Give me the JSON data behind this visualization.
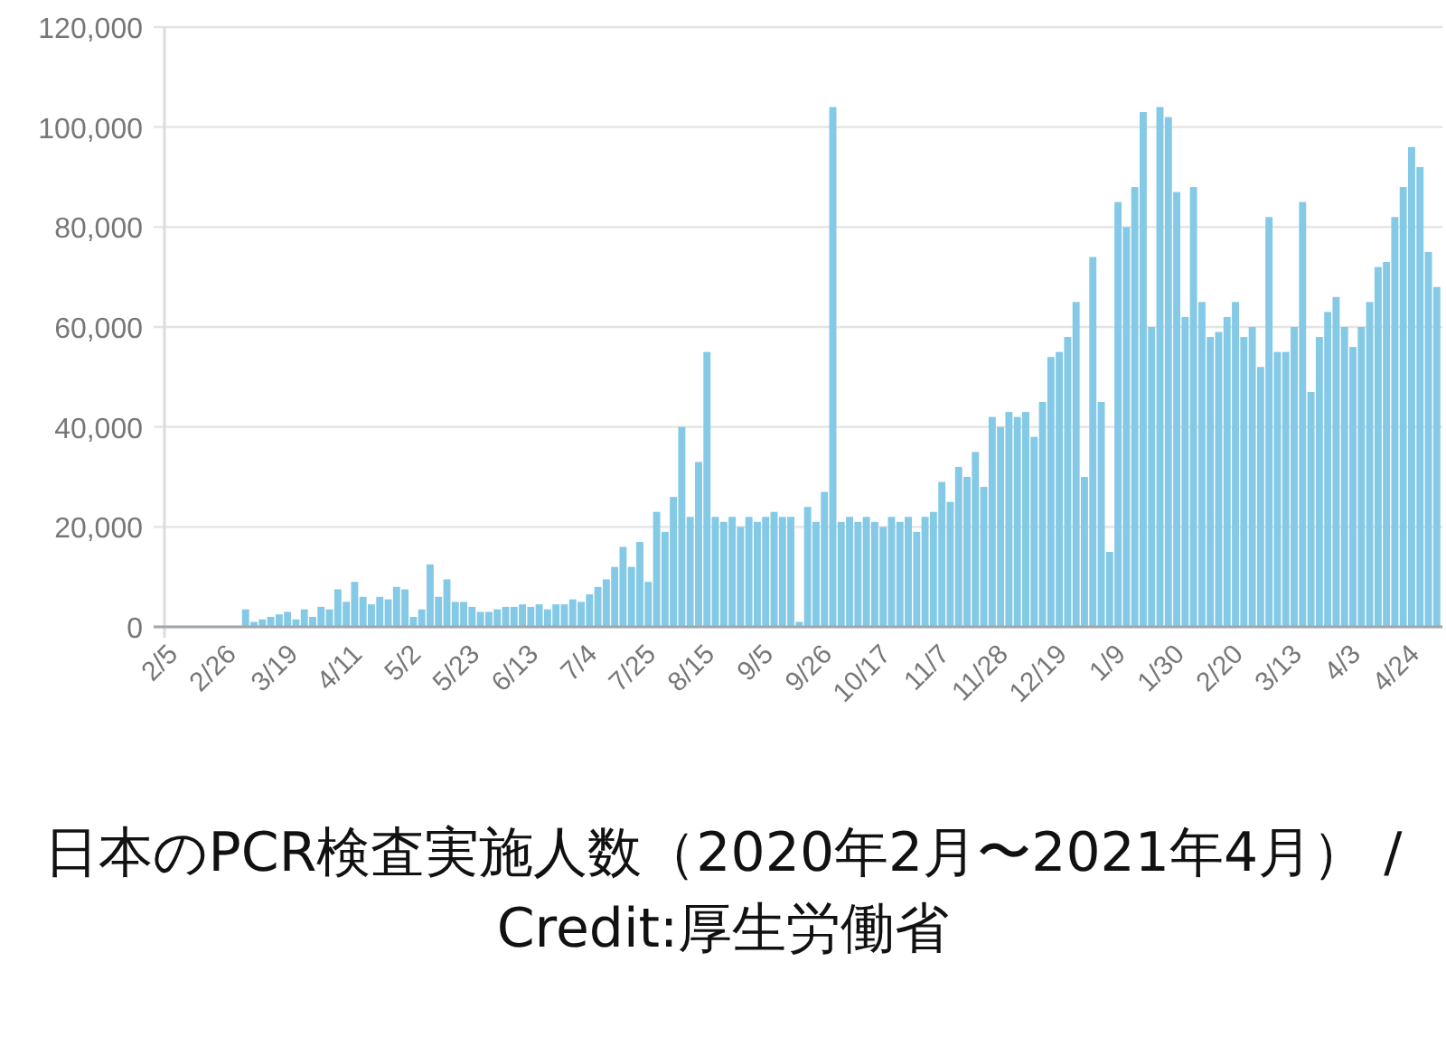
{
  "chart_data": {
    "type": "bar",
    "title": "日本のPCR検査実施人数（2020年2月〜2021年4月） / Credit:厚生労働省",
    "color": "#84c9e6",
    "grid": "y",
    "xlim": [
      "2020-02-03",
      "2021-05-05"
    ],
    "ylim": [
      0,
      120000
    ],
    "yticks": [
      {
        "value": 0,
        "label": "0"
      },
      {
        "value": 20000,
        "label": "20,000"
      },
      {
        "value": 40000,
        "label": "40,000"
      },
      {
        "value": 60000,
        "label": "60,000"
      },
      {
        "value": 80000,
        "label": "80,000"
      },
      {
        "value": 100000,
        "label": "100,000"
      },
      {
        "value": 120000,
        "label": "120,000"
      }
    ],
    "xticks": [
      {
        "value": "2020-02-05",
        "label": "2/5"
      },
      {
        "value": "2020-02-26",
        "label": "2/26"
      },
      {
        "value": "2020-03-19",
        "label": "3/19"
      },
      {
        "value": "2020-04-11",
        "label": "4/11"
      },
      {
        "value": "2020-05-02",
        "label": "5/2"
      },
      {
        "value": "2020-05-23",
        "label": "5/23"
      },
      {
        "value": "2020-06-13",
        "label": "6/13"
      },
      {
        "value": "2020-07-04",
        "label": "7/4"
      },
      {
        "value": "2020-07-25",
        "label": "7/25"
      },
      {
        "value": "2020-08-15",
        "label": "8/15"
      },
      {
        "value": "2020-09-05",
        "label": "9/5"
      },
      {
        "value": "2020-09-26",
        "label": "9/26"
      },
      {
        "value": "2020-10-17",
        "label": "10/17"
      },
      {
        "value": "2020-11-07",
        "label": "11/7"
      },
      {
        "value": "2020-11-28",
        "label": "11/28"
      },
      {
        "value": "2020-12-19",
        "label": "12/19"
      },
      {
        "value": "2021-01-09",
        "label": "1/9"
      },
      {
        "value": "2021-01-30",
        "label": "1/30"
      },
      {
        "value": "2021-02-20",
        "label": "2/20"
      },
      {
        "value": "2021-03-13",
        "label": "3/13"
      },
      {
        "value": "2021-04-03",
        "label": "4/3"
      },
      {
        "value": "2021-04-24",
        "label": "4/24"
      }
    ],
    "x": [
      "2020-02-05",
      "2020-02-08",
      "2020-02-11",
      "2020-02-14",
      "2020-02-17",
      "2020-02-20",
      "2020-02-23",
      "2020-02-26",
      "2020-02-29",
      "2020-03-03",
      "2020-03-06",
      "2020-03-09",
      "2020-03-12",
      "2020-03-15",
      "2020-03-18",
      "2020-03-21",
      "2020-03-24",
      "2020-03-27",
      "2020-03-30",
      "2020-04-02",
      "2020-04-05",
      "2020-04-08",
      "2020-04-11",
      "2020-04-14",
      "2020-04-17",
      "2020-04-20",
      "2020-04-23",
      "2020-04-26",
      "2020-04-29",
      "2020-05-02",
      "2020-05-05",
      "2020-05-08",
      "2020-05-11",
      "2020-05-14",
      "2020-05-17",
      "2020-05-20",
      "2020-05-23",
      "2020-05-26",
      "2020-05-29",
      "2020-06-01",
      "2020-06-04",
      "2020-06-07",
      "2020-06-10",
      "2020-06-13",
      "2020-06-16",
      "2020-06-19",
      "2020-06-22",
      "2020-06-25",
      "2020-06-28",
      "2020-07-01",
      "2020-07-04",
      "2020-07-07",
      "2020-07-10",
      "2020-07-13",
      "2020-07-16",
      "2020-07-19",
      "2020-07-22",
      "2020-07-25",
      "2020-07-28",
      "2020-07-31",
      "2020-08-03",
      "2020-08-06",
      "2020-08-09",
      "2020-08-12",
      "2020-08-15",
      "2020-08-18",
      "2020-08-21",
      "2020-08-24",
      "2020-08-27",
      "2020-08-30",
      "2020-09-02",
      "2020-09-05",
      "2020-09-08",
      "2020-09-11",
      "2020-09-14",
      "2020-09-17",
      "2020-09-20",
      "2020-09-23",
      "2020-09-26",
      "2020-09-29",
      "2020-10-02",
      "2020-10-05",
      "2020-10-08",
      "2020-10-11",
      "2020-10-14",
      "2020-10-17",
      "2020-10-20",
      "2020-10-23",
      "2020-10-26",
      "2020-10-29",
      "2020-11-01",
      "2020-11-04",
      "2020-11-07",
      "2020-11-10",
      "2020-11-13",
      "2020-11-16",
      "2020-11-19",
      "2020-11-22",
      "2020-11-25",
      "2020-11-28",
      "2020-12-01",
      "2020-12-04",
      "2020-12-07",
      "2020-12-10",
      "2020-12-13",
      "2020-12-16",
      "2020-12-19",
      "2020-12-22",
      "2020-12-25",
      "2020-12-28",
      "2020-12-31",
      "2021-01-03",
      "2021-01-06",
      "2021-01-09",
      "2021-01-12",
      "2021-01-15",
      "2021-01-18",
      "2021-01-21",
      "2021-01-24",
      "2021-01-27",
      "2021-01-30",
      "2021-02-02",
      "2021-02-05",
      "2021-02-08",
      "2021-02-11",
      "2021-02-14",
      "2021-02-17",
      "2021-02-20",
      "2021-02-23",
      "2021-02-26",
      "2021-03-01",
      "2021-03-04",
      "2021-03-07",
      "2021-03-10",
      "2021-03-13",
      "2021-03-16",
      "2021-03-19",
      "2021-03-22",
      "2021-03-25",
      "2021-03-28",
      "2021-03-31",
      "2021-04-03",
      "2021-04-06",
      "2021-04-09",
      "2021-04-12",
      "2021-04-15",
      "2021-04-18",
      "2021-04-21",
      "2021-04-24",
      "2021-04-27",
      "2021-04-30",
      "2021-05-03"
    ],
    "values": [
      0,
      0,
      0,
      0,
      0,
      0,
      0,
      0,
      0,
      3500,
      1000,
      1500,
      2000,
      2500,
      3000,
      1500,
      3500,
      2000,
      4000,
      3500,
      7500,
      5000,
      9000,
      6000,
      4500,
      6000,
      5500,
      8000,
      7500,
      2000,
      3500,
      12500,
      6000,
      9500,
      5000,
      5000,
      4000,
      3000,
      3000,
      3500,
      4000,
      4000,
      4500,
      4000,
      4500,
      3500,
      4500,
      4500,
      5500,
      5000,
      6500,
      8000,
      9500,
      12000,
      16000,
      12000,
      17000,
      9000,
      23000,
      19000,
      26000,
      40000,
      22000,
      33000,
      55000,
      22000,
      21000,
      22000,
      20000,
      22000,
      21000,
      22000,
      23000,
      22000,
      22000,
      1000,
      24000,
      21000,
      27000,
      104000,
      21000,
      22000,
      21000,
      22000,
      21000,
      20000,
      22000,
      21000,
      22000,
      19000,
      22000,
      23000,
      29000,
      25000,
      32000,
      30000,
      35000,
      28000,
      42000,
      40000,
      43000,
      42000,
      43000,
      38000,
      45000,
      54000,
      55000,
      58000,
      65000,
      30000,
      74000,
      45000,
      15000,
      85000,
      80000,
      88000,
      103000,
      60000,
      104000,
      102000,
      87000,
      62000,
      88000,
      65000,
      58000,
      59000,
      62000,
      65000,
      58000,
      60000,
      52000,
      82000,
      55000,
      55000,
      60000,
      85000,
      47000,
      58000,
      63000,
      66000,
      60000,
      56000,
      60000,
      65000,
      72000,
      73000,
      82000,
      88000,
      96000,
      92000,
      75000,
      68000
    ]
  }
}
